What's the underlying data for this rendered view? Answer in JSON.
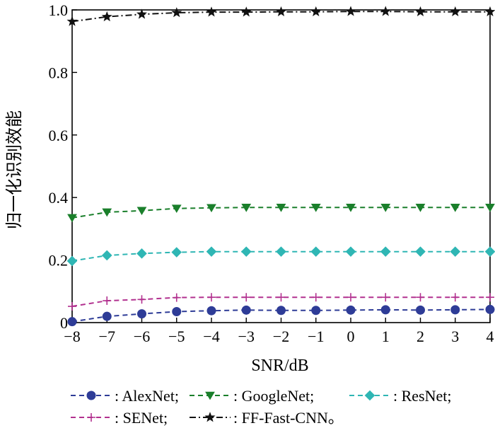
{
  "chart_data": {
    "type": "line",
    "xlabel": "SNR/dB",
    "ylabel": "归一化识别效能",
    "xlim": [
      -8,
      4
    ],
    "ylim": [
      0,
      1.0
    ],
    "x": [
      -8,
      -7,
      -6,
      -5,
      -4,
      -3,
      -2,
      -1,
      0,
      1,
      2,
      3,
      4
    ],
    "xticks": [
      "−8",
      "−7",
      "−6",
      "−5",
      "−4",
      "−3",
      "−2",
      "−1",
      "0",
      "1",
      "2",
      "3",
      "4"
    ],
    "yticks": [
      "0",
      "0.2",
      "0.4",
      "0.6",
      "0.8",
      "1.0"
    ],
    "ytick_values": [
      0,
      0.2,
      0.4,
      0.6,
      0.8,
      1.0
    ],
    "grid": false,
    "legend_position": "bottom",
    "series": [
      {
        "name": ": AlexNet;",
        "color": "#2e3c97",
        "marker": "circle",
        "dash": "dash",
        "values": [
          0.003,
          0.02,
          0.028,
          0.035,
          0.038,
          0.04,
          0.039,
          0.039,
          0.04,
          0.041,
          0.04,
          0.041,
          0.042
        ]
      },
      {
        "name": ": GoogleNet;",
        "color": "#1a7f2b",
        "marker": "triangle-down",
        "dash": "dash",
        "values": [
          0.335,
          0.353,
          0.358,
          0.365,
          0.367,
          0.368,
          0.368,
          0.368,
          0.368,
          0.368,
          0.368,
          0.368,
          0.368
        ]
      },
      {
        "name": ": ResNet;",
        "color": "#2fb6b4",
        "marker": "diamond",
        "dash": "dash",
        "values": [
          0.197,
          0.215,
          0.221,
          0.225,
          0.227,
          0.227,
          0.227,
          0.227,
          0.227,
          0.227,
          0.227,
          0.227,
          0.227
        ]
      },
      {
        "name": ": SENet;",
        "color": "#b2318f",
        "marker": "plus",
        "dash": "dash",
        "values": [
          0.052,
          0.07,
          0.074,
          0.08,
          0.081,
          0.081,
          0.081,
          0.081,
          0.081,
          0.081,
          0.081,
          0.081,
          0.081
        ]
      },
      {
        "name": ": FF-Fast-CNN。",
        "color": "#111111",
        "marker": "star",
        "dash": "dashdot",
        "values": [
          0.963,
          0.978,
          0.986,
          0.991,
          0.993,
          0.993,
          0.994,
          0.994,
          0.995,
          0.995,
          0.994,
          0.994,
          0.994
        ]
      }
    ]
  }
}
